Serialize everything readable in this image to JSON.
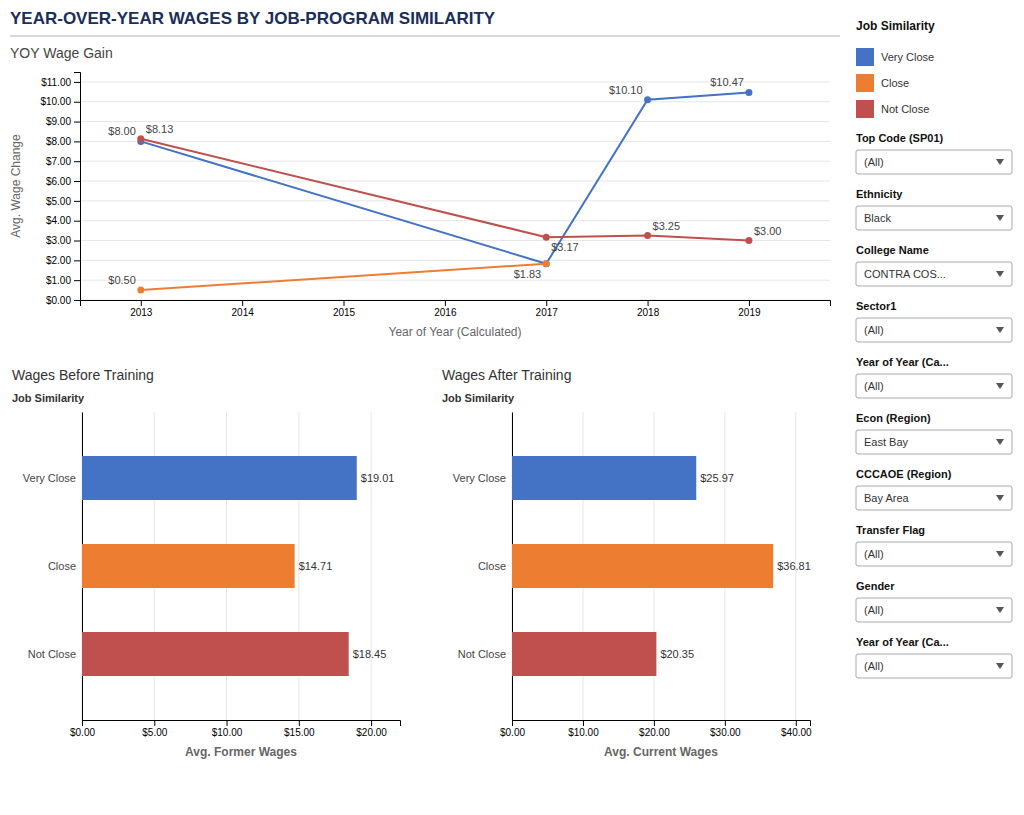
{
  "title": "YEAR-OVER-YEAR WAGES BY JOB-PROGRAM SIMILARITY",
  "legend_title": "Job Similarity",
  "filters": [
    {
      "label": "Top Code (SP01)",
      "value": "(All)"
    },
    {
      "label": "Ethnicity",
      "value": "Black"
    },
    {
      "label": "College Name",
      "value": "CONTRA COS..."
    },
    {
      "label": "Sector1",
      "value": "(All)"
    },
    {
      "label": "Year of Year (Ca...",
      "value": "(All)"
    },
    {
      "label": "Econ (Region)",
      "value": "East Bay"
    },
    {
      "label": "CCCAOE (Region)",
      "value": "Bay Area"
    },
    {
      "label": "Transfer Flag",
      "value": "(All)"
    },
    {
      "label": "Gender",
      "value": "(All)"
    },
    {
      "label": "Year of Year (Ca...",
      "value": "(All)"
    }
  ],
  "chart_data": [
    {
      "type": "line",
      "title": "YOY Wage Gain",
      "xlabel": "Year of Year (Calculated)",
      "ylabel": "Avg. Wage Change",
      "x": [
        2013,
        2017,
        2018,
        2019
      ],
      "xlim": [
        2012.4,
        2019.8
      ],
      "xticks": [
        2013,
        2014,
        2015,
        2016,
        2017,
        2018,
        2019
      ],
      "ylim": [
        0.0,
        11.5
      ],
      "yticks": [
        {
          "value": 0.0,
          "label": "$0.00"
        },
        {
          "value": 1.0,
          "label": "$1.00"
        },
        {
          "value": 2.0,
          "label": "$2.00"
        },
        {
          "value": 3.0,
          "label": "$3.00"
        },
        {
          "value": 4.0,
          "label": "$4.00"
        },
        {
          "value": 5.0,
          "label": "$5.00"
        },
        {
          "value": 6.0,
          "label": "$6.00"
        },
        {
          "value": 7.0,
          "label": "$7.00"
        },
        {
          "value": 8.0,
          "label": "$8.00"
        },
        {
          "value": 9.0,
          "label": "$9.00"
        },
        {
          "value": 10.0,
          "label": "$10.00"
        },
        {
          "value": 11.0,
          "label": "$11.00"
        }
      ],
      "grid": true,
      "legend": "right",
      "marker": "circle",
      "data_labels": true,
      "series": [
        {
          "name": "Very Close",
          "color": "#4472c4",
          "values": [
            8.0,
            1.83,
            10.1,
            10.47
          ],
          "value_labels": [
            "$8.00",
            "$1.83",
            "$10.10",
            "$10.47"
          ]
        },
        {
          "name": "Close",
          "color": "#ed7d31",
          "values": [
            0.5,
            1.83,
            null,
            null
          ],
          "value_labels": [
            "$0.50",
            null,
            null,
            null
          ]
        },
        {
          "name": "Not Close",
          "color": "#c0504d",
          "values": [
            8.13,
            3.17,
            3.25,
            3.0
          ],
          "value_labels": [
            "$8.13",
            "$3.17",
            "$3.25",
            "$3.00"
          ]
        }
      ]
    },
    {
      "type": "bar",
      "orientation": "horizontal",
      "title": "Wages Before Training",
      "xlabel": "Avg. Former Wages",
      "ylabel": "Job Similarity",
      "categories": [
        "Very Close",
        "Close",
        "Not Close"
      ],
      "values": [
        19.01,
        14.71,
        18.45
      ],
      "value_labels": [
        "$19.01",
        "$14.71",
        "$18.45"
      ],
      "colors": [
        "#4472c4",
        "#ed7d31",
        "#c0504d"
      ],
      "xlim": [
        0,
        22
      ],
      "xticks": [
        {
          "value": 0,
          "label": "$0.00"
        },
        {
          "value": 5,
          "label": "$5.00"
        },
        {
          "value": 10,
          "label": "$10.00"
        },
        {
          "value": 15,
          "label": "$15.00"
        },
        {
          "value": 20,
          "label": "$20.00"
        }
      ],
      "grid": true,
      "data_labels": true
    },
    {
      "type": "bar",
      "orientation": "horizontal",
      "title": "Wages After Training",
      "xlabel": "Avg. Current Wages",
      "ylabel": "Job Similarity",
      "categories": [
        "Very Close",
        "Close",
        "Not Close"
      ],
      "values": [
        25.97,
        36.81,
        20.35
      ],
      "value_labels": [
        "$25.97",
        "$36.81",
        "$20.35"
      ],
      "colors": [
        "#4472c4",
        "#ed7d31",
        "#c0504d"
      ],
      "xlim": [
        0,
        42
      ],
      "xticks": [
        {
          "value": 0,
          "label": "$0.00"
        },
        {
          "value": 10,
          "label": "$10.00"
        },
        {
          "value": 20,
          "label": "$20.00"
        },
        {
          "value": 30,
          "label": "$30.00"
        },
        {
          "value": 40,
          "label": "$40.00"
        }
      ],
      "grid": true,
      "data_labels": true
    }
  ]
}
